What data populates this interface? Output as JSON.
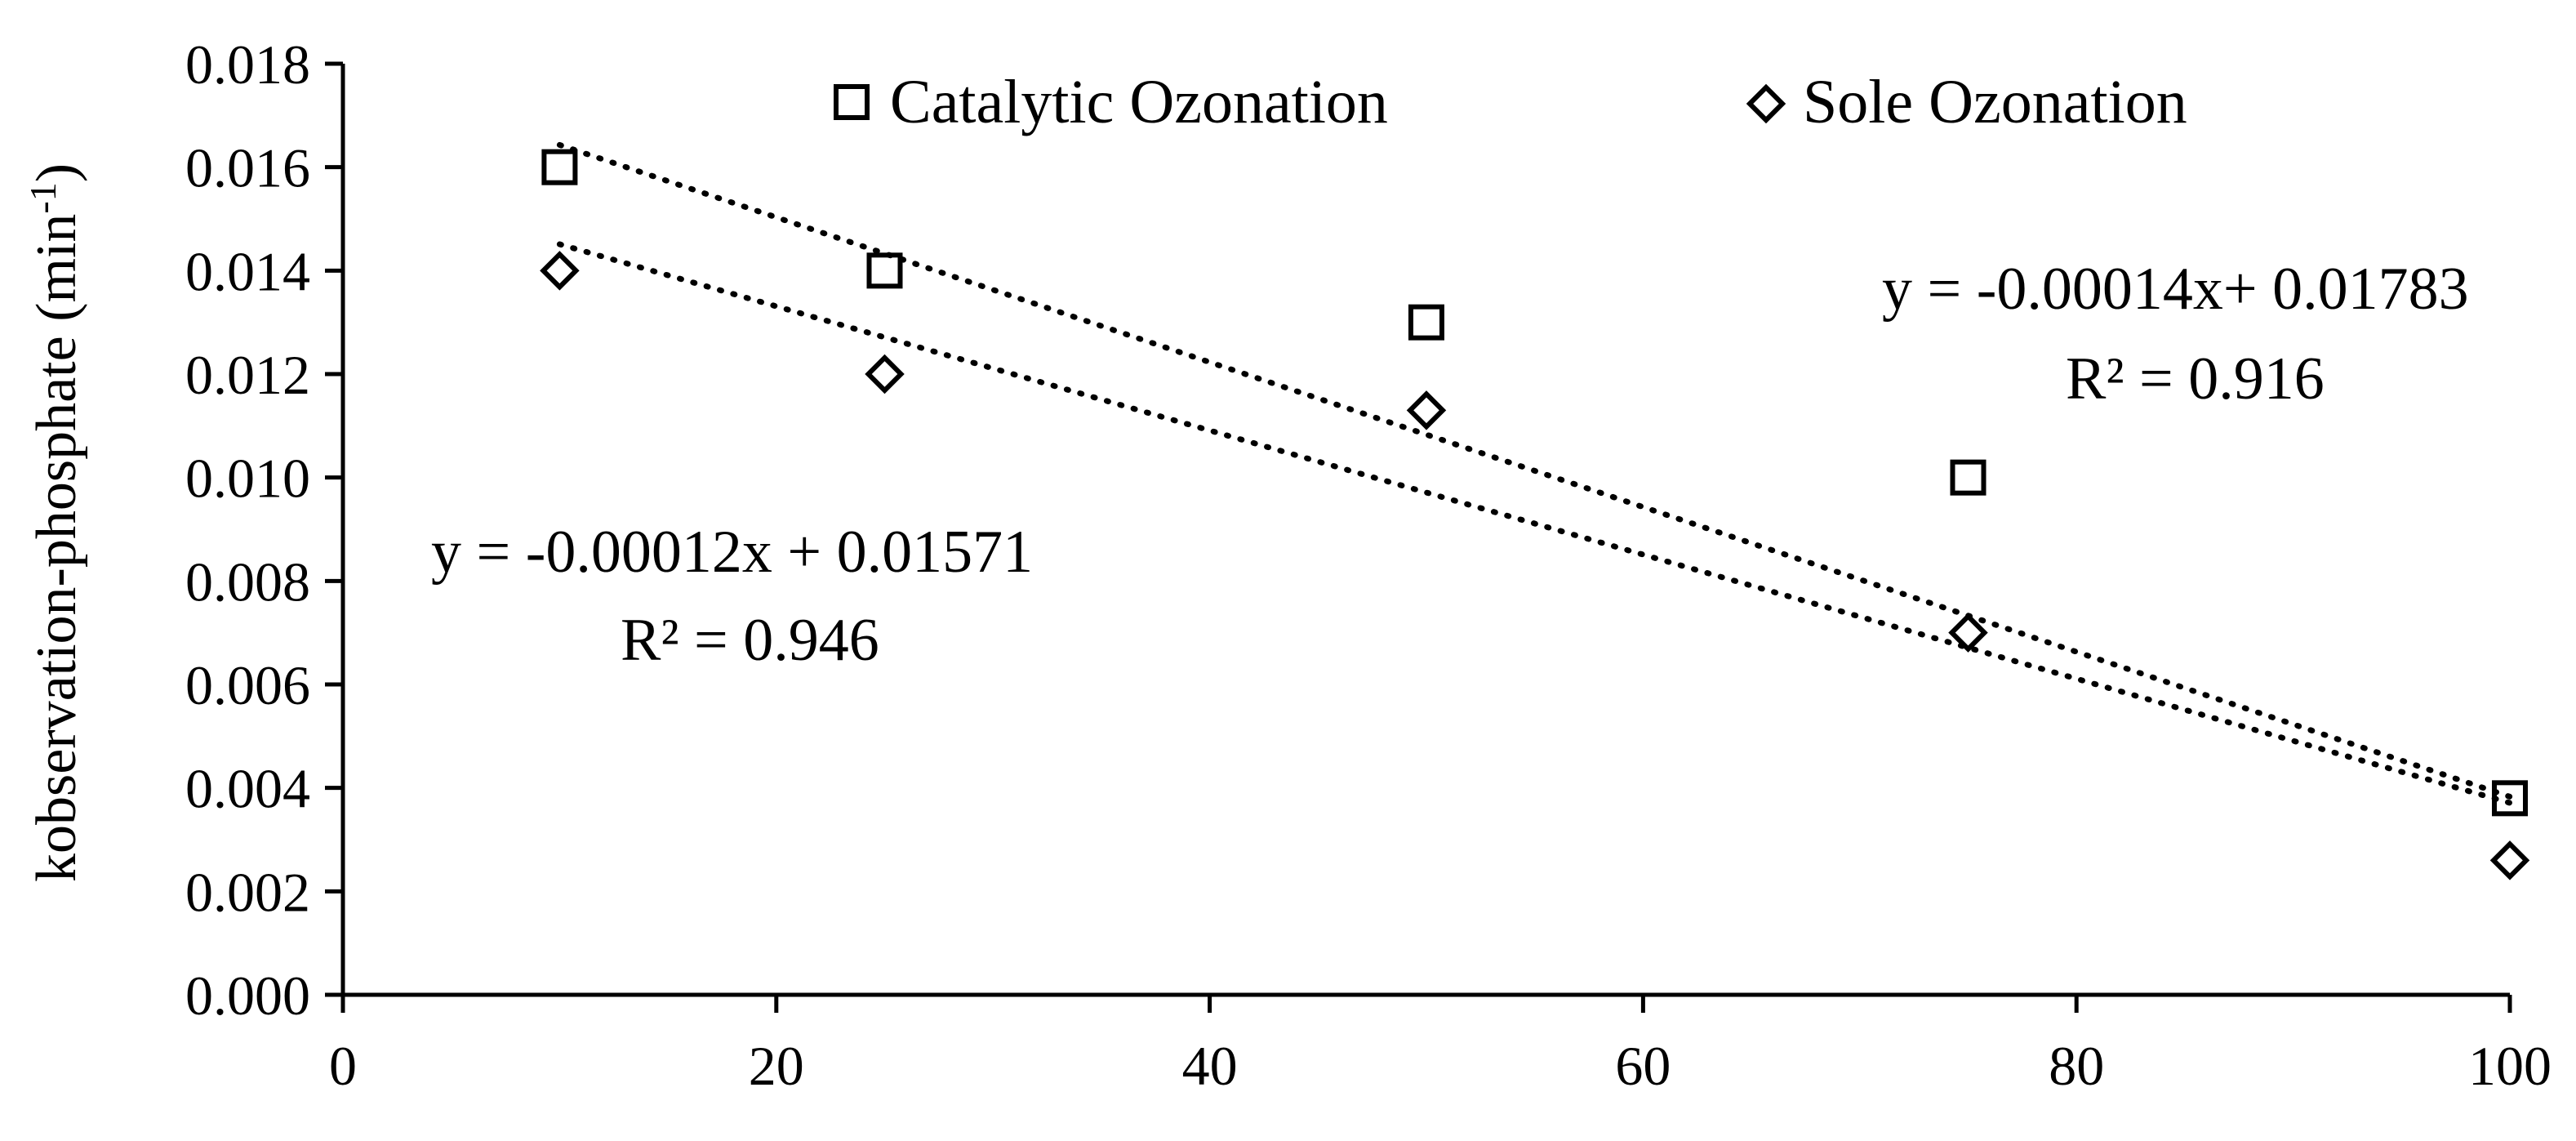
{
  "chart_data": {
    "type": "scatter",
    "title": "",
    "xlabel": "",
    "ylabel": "kobservation-phosphate (min",
    "ylabel_sup": "-1",
    "ylabel_close": ")",
    "xlim": [
      0,
      100
    ],
    "ylim": [
      0,
      0.018
    ],
    "xticks": [
      0,
      20,
      40,
      60,
      80,
      100
    ],
    "yticks": [
      0,
      0.002,
      0.004,
      0.006,
      0.008,
      0.01,
      0.012,
      0.014,
      0.016,
      0.018
    ],
    "xtick_labels": [
      "0",
      "20",
      "40",
      "60",
      "80",
      "100"
    ],
    "ytick_labels": [
      "0.000",
      "0.002",
      "0.004",
      "0.006",
      "0.008",
      "0.010",
      "0.012",
      "0.014",
      "0.016",
      "0.018"
    ],
    "grid": false,
    "legend_position": "top",
    "series": [
      {
        "name": "Catalytic Ozonation",
        "marker": "square",
        "x": [
          10,
          25,
          50,
          75,
          100
        ],
        "values": [
          0.016,
          0.014,
          0.013,
          0.01,
          0.0038
        ],
        "trendline": {
          "slope": -0.00014,
          "intercept": 0.01783,
          "x_range": [
            10,
            100
          ]
        },
        "equation": "y = -0.00014x+ 0.01783",
        "r2": "R² = 0.916"
      },
      {
        "name": "Sole Ozonation",
        "marker": "diamond",
        "x": [
          10,
          25,
          50,
          75,
          100
        ],
        "values": [
          0.014,
          0.012,
          0.0113,
          0.007,
          0.0026
        ],
        "trendline": {
          "slope": -0.00012,
          "intercept": 0.01571,
          "x_range": [
            10,
            100
          ]
        },
        "equation": "y = -0.00012x + 0.01571",
        "r2": "R² = 0.946"
      }
    ]
  }
}
